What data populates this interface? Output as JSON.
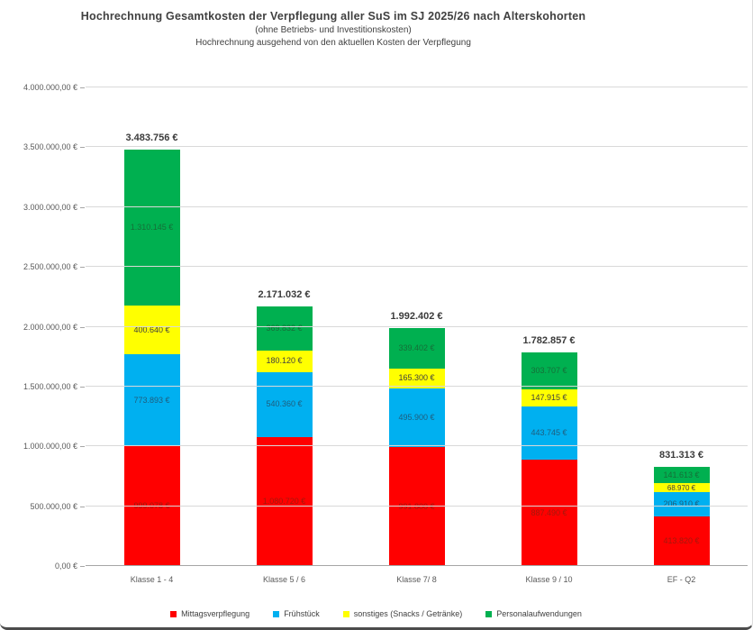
{
  "header": {
    "title": "Hochrechnung Gesamtkosten der Verpflegung aller SuS im SJ 2025/26 nach Alterskohorten",
    "subtitle1": "(ohne Betriebs- und Investitionskosten)",
    "subtitle2": "Hochrechnung ausgehend von den aktuellen Kosten der Verpflegung"
  },
  "chart_data": {
    "type": "bar",
    "stacked": true,
    "title": "Hochrechnung Gesamtkosten der Verpflegung aller SuS im SJ 2025/26 nach Alterskohorten",
    "subtitles": [
      "(ohne Betriebs- und Investitionskosten)",
      "Hochrechnung ausgehend von den aktuellen Kosten der Verpflegung"
    ],
    "categories": [
      "Klasse 1 - 4",
      "Klasse 5 / 6",
      "Klasse 7/ 8",
      "Klasse 9 / 10",
      "EF - Q2"
    ],
    "series": [
      {
        "name": "Mittagsverpflegung",
        "color": "#ff0000",
        "label_color": "#a4180c",
        "values": [
          999078,
          1080720,
          991800,
          887490,
          413820
        ]
      },
      {
        "name": "Frühstück",
        "color": "#00b0f0",
        "label_color": "#1f5d7d",
        "values": [
          773893,
          540360,
          495900,
          443745,
          206910
        ]
      },
      {
        "name": "sonstiges (Snacks / Getränke)",
        "color": "#ffff00",
        "label_color": "#404040",
        "values": [
          400640,
          180120,
          165300,
          147915,
          68970
        ]
      },
      {
        "name": "Personalaufwendungen",
        "color": "#00b050",
        "label_color": "#156f38",
        "values": [
          1310145,
          369832,
          339402,
          303707,
          141613
        ]
      }
    ],
    "totals": [
      3483756,
      2171032,
      1992402,
      1782857,
      831313
    ],
    "value_suffix": " €",
    "xlabel": "",
    "ylabel": "",
    "ylim": [
      0,
      4000000
    ],
    "ytick_step": 500000,
    "ytick_labels": [
      "0,00 €",
      "500.000,00 €",
      "1.000.000,00 €",
      "1.500.000,00 €",
      "2.000.000,00 €",
      "2.500.000,00 €",
      "3.000.000,00 €",
      "3.500.000,00 €",
      "4.000.000,00 €"
    ],
    "grid": true,
    "legend_position": "bottom"
  },
  "style": {
    "gridline_color": "#d9d9d9",
    "axis_color": "#a6a6a6",
    "tick_label_color": "#595959",
    "category_label_color": "#595959",
    "total_label_color": "#3b3b3b",
    "legend_label_color": "#404040"
  }
}
